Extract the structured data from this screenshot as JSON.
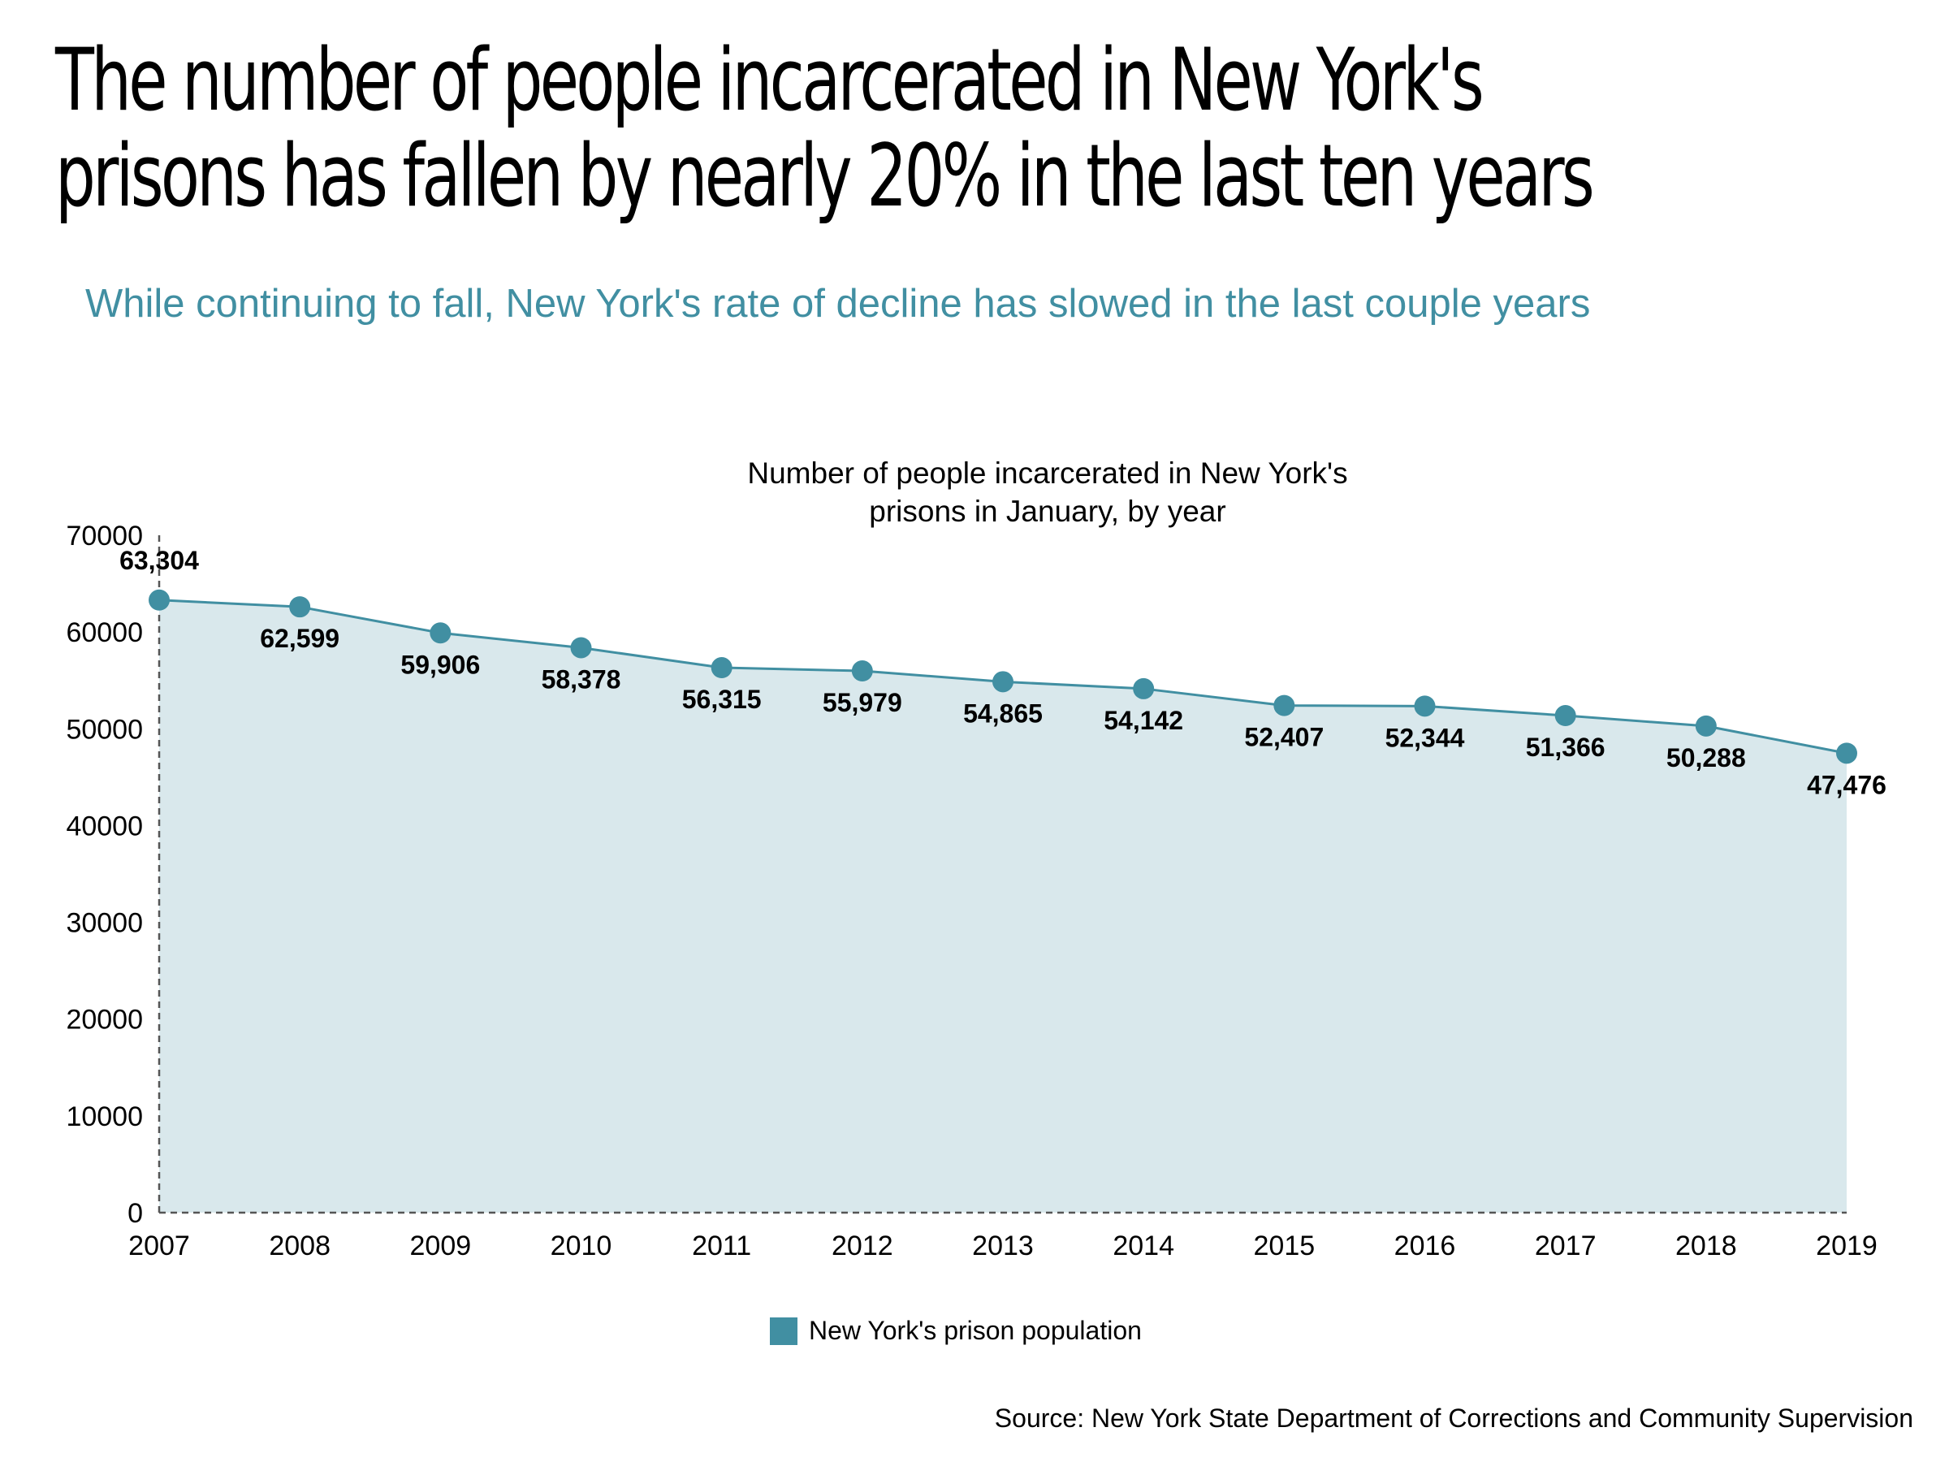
{
  "headline": {
    "line1": "The number of people incarcerated in New York's",
    "line2": "prisons has fallen by nearly 20% in the last ten years"
  },
  "subtitle": "While continuing to fall, New York's rate of decline has slowed in the last couple years",
  "legend": {
    "label": "New York's prison population"
  },
  "source": "Source: New York State Department of Corrections and Community Supervision",
  "colors": {
    "accent": "#418fa2",
    "area_fill": "#d9e8ec",
    "axis": "#555555"
  },
  "chart_data": {
    "type": "area",
    "title_lines": [
      "Number of people incarcerated in New York's",
      "prisons in January, by year"
    ],
    "categories": [
      "2007",
      "2008",
      "2009",
      "2010",
      "2011",
      "2012",
      "2013",
      "2014",
      "2015",
      "2016",
      "2017",
      "2018",
      "2019"
    ],
    "series": [
      {
        "name": "New York's prison population",
        "values": [
          63304,
          62599,
          59906,
          58378,
          56315,
          55979,
          54865,
          54142,
          52407,
          52344,
          51366,
          50288,
          47476
        ],
        "labels": [
          "63,304",
          "62,599",
          "59,906",
          "58,378",
          "56,315",
          "55,979",
          "54,865",
          "54,142",
          "52,407",
          "52,344",
          "51,366",
          "50,288",
          "47,476"
        ]
      }
    ],
    "y_ticks": [
      "0",
      "10000",
      "20000",
      "30000",
      "40000",
      "50000",
      "60000",
      "70000"
    ],
    "ylim": [
      0,
      70000
    ],
    "xlabel": "",
    "ylabel": "",
    "grid": false,
    "legend_position": "bottom-center"
  }
}
